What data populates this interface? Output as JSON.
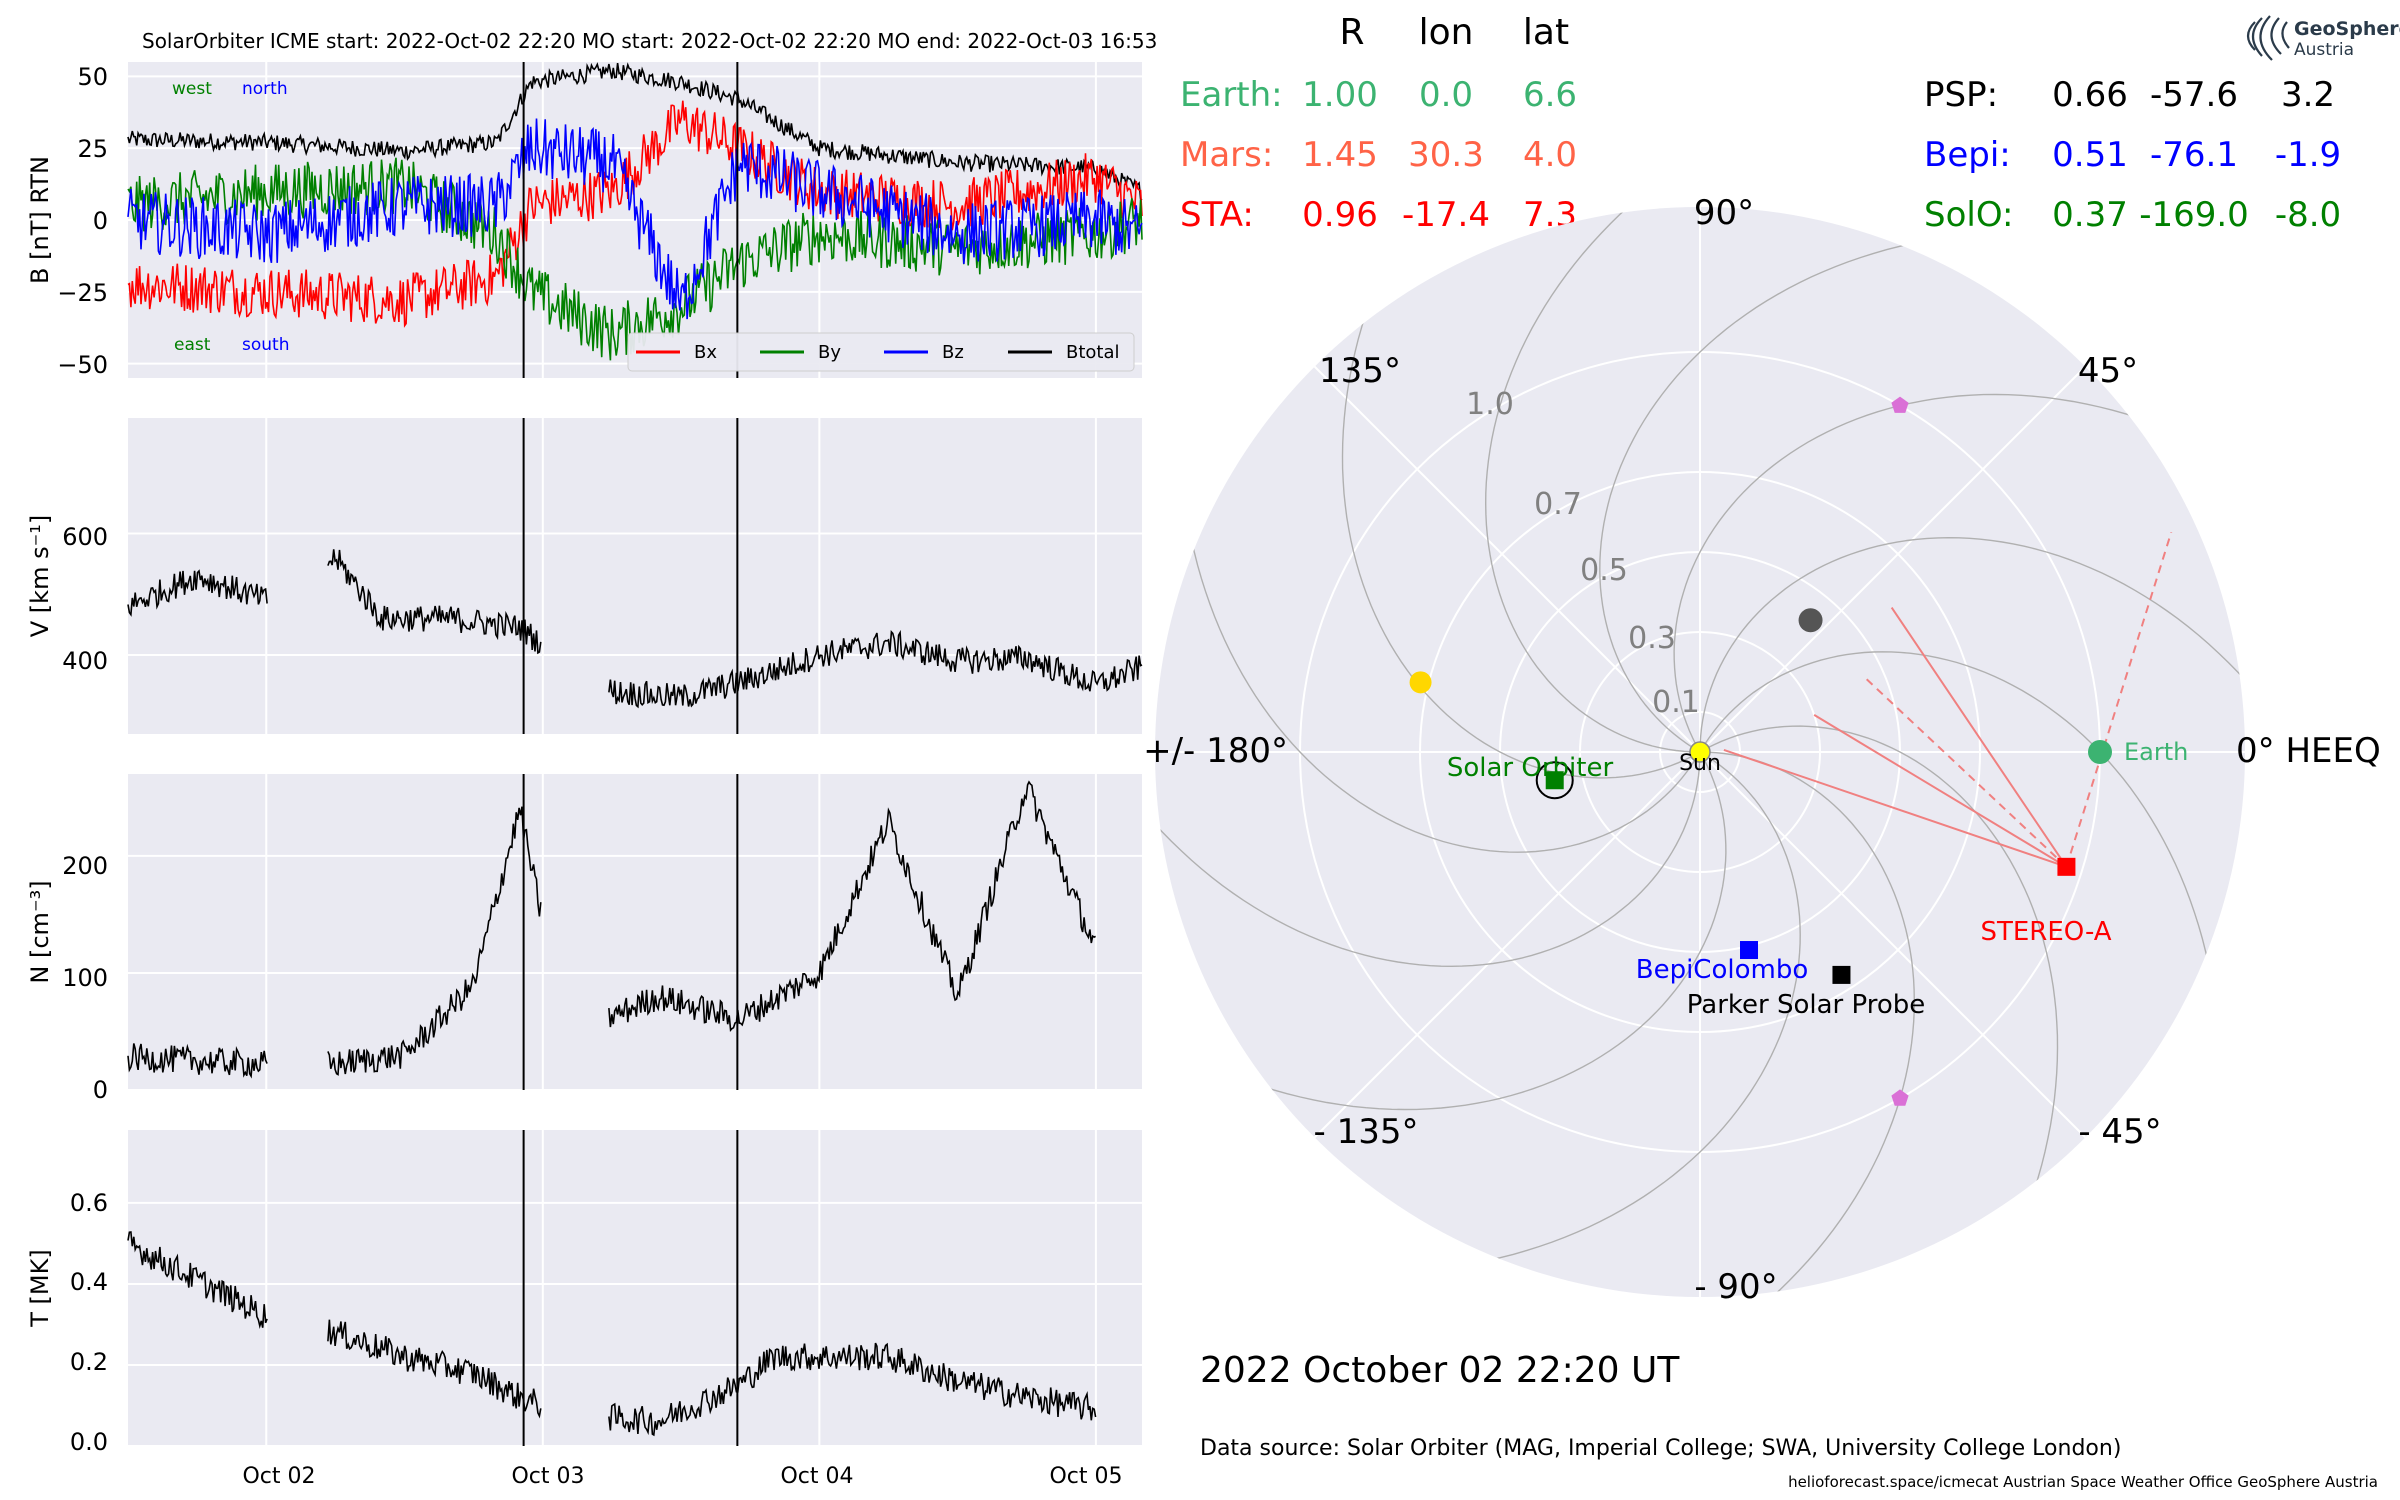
{
  "colors": {
    "bx": "#ff0000",
    "by": "#008000",
    "bz": "#0000ff",
    "btotal": "#000000",
    "earth": "#3cb371",
    "mars": "#ff6347",
    "sta": "#ff0000",
    "psp": "#000000",
    "bepi": "#0000ff",
    "solo": "#008000",
    "sun": "#ffff00",
    "plot_bg": "#eaeaf2",
    "grid": "#ffffff",
    "mercury": "#555555",
    "venus": "#ffd700",
    "l4l5": "#da70d6"
  },
  "header": {
    "title": "SolarOrbiter    ICME start: 2022-Oct-02 22:20    MO start: 2022-Oct-02 22:20    MO end: 2022-Oct-03 16:53"
  },
  "panel_b": {
    "ylabel": "B [nT] RTN",
    "yticks": [
      "50",
      "25",
      "0",
      "−25",
      "−50"
    ],
    "west": "west",
    "north": "north",
    "east": "east",
    "south": "south",
    "legend": [
      "Bx",
      "By",
      "Bz",
      "Btotal"
    ]
  },
  "panel_v": {
    "ylabel": "V [km s⁻¹]",
    "yticks": [
      "600",
      "400"
    ]
  },
  "panel_n": {
    "ylabel": "N [cm⁻³]",
    "yticks": [
      "200",
      "100",
      "0"
    ]
  },
  "panel_t": {
    "ylabel": "T [MK]",
    "yticks": [
      "0.6",
      "0.4",
      "0.2",
      "0.0"
    ]
  },
  "xticks": [
    "Oct 02",
    "Oct 03",
    "Oct 04",
    "Oct 05"
  ],
  "chart_data": [
    {
      "type": "line",
      "title": "SolarOrbiter    ICME start: 2022-Oct-02 22:20    MO start: 2022-Oct-02 22:20    MO end: 2022-Oct-03 16:53",
      "ylabel": "B [nT] RTN",
      "xlim": [
        "2022-10-01 12:00",
        "2022-10-05 04:00"
      ],
      "ylim": [
        -55,
        55
      ],
      "vlines": [
        "2022-10-02 22:20",
        "2022-10-03 16:53"
      ],
      "legend": "lower-right",
      "series": [
        {
          "name": "Btotal",
          "x": [
            "10-01 12:00",
            "10-02 00:00",
            "10-02 12:00",
            "10-02 20:00",
            "10-02 23:00",
            "10-03 06:00",
            "10-03 12:00",
            "10-03 17:00",
            "10-04 00:00",
            "10-04 12:00",
            "10-05 00:00",
            "10-05 04:00"
          ],
          "y": [
            28,
            27,
            24,
            27,
            48,
            52,
            48,
            42,
            25,
            20,
            18,
            10
          ]
        },
        {
          "name": "Bx",
          "x": [
            "10-01 12:00",
            "10-02 00:00",
            "10-02 12:00",
            "10-02 20:00",
            "10-02 23:00",
            "10-03 06:00",
            "10-03 12:00",
            "10-03 17:00",
            "10-04 00:00",
            "10-04 12:00",
            "10-05 00:00",
            "10-05 04:00"
          ],
          "y": [
            -22,
            -25,
            -28,
            -20,
            5,
            10,
            35,
            25,
            10,
            5,
            15,
            5
          ]
        },
        {
          "name": "By",
          "x": [
            "10-01 12:00",
            "10-02 00:00",
            "10-02 12:00",
            "10-02 20:00",
            "10-02 23:00",
            "10-03 06:00",
            "10-03 12:00",
            "10-03 17:00",
            "10-04 00:00",
            "10-04 12:00",
            "10-05 00:00",
            "10-05 04:00"
          ],
          "y": [
            5,
            10,
            12,
            -5,
            -25,
            -40,
            -30,
            -15,
            -5,
            -10,
            -5,
            0
          ]
        },
        {
          "name": "Bz",
          "x": [
            "10-01 12:00",
            "10-02 00:00",
            "10-02 12:00",
            "10-02 20:00",
            "10-02 23:00",
            "10-03 06:00",
            "10-03 12:00",
            "10-03 17:00",
            "10-04 00:00",
            "10-04 12:00",
            "10-05 00:00",
            "10-05 04:00"
          ],
          "y": [
            0,
            -5,
            5,
            5,
            25,
            20,
            -30,
            20,
            10,
            -5,
            0,
            -5
          ]
        }
      ]
    },
    {
      "type": "line",
      "ylabel": "V [km s⁻¹]",
      "ylim": [
        270,
        790
      ],
      "series": [
        {
          "x": [
            "10-01 12:00",
            "10-01 18:00",
            "10-02 00:00",
            "10-02 06:00",
            "10-02 10:00",
            "10-02 16:00",
            "10-02 22:00",
            "10-03 02:00",
            "10-03 06:00",
            "10-03 12:00",
            "10-03 18:00",
            "10-04 00:00",
            "10-04 06:00",
            "10-04 12:00",
            "10-04 18:00",
            "10-05 00:00",
            "10-05 04:00"
          ],
          "y": [
            480,
            530,
            490,
            560,
            460,
            460,
            445,
            390,
            340,
            330,
            360,
            400,
            420,
            390,
            395,
            350,
            380
          ]
        }
      ]
    },
    {
      "type": "line",
      "ylabel": "N [cm⁻³]",
      "ylim": [
        0,
        270
      ],
      "series": [
        {
          "x": [
            "10-01 12:00",
            "10-02 00:00",
            "10-02 06:00",
            "10-02 12:00",
            "10-02 18:00",
            "10-02 22:00",
            "10-03 02:00",
            "10-03 10:00",
            "10-03 17:00",
            "10-04 00:00",
            "10-04 06:00",
            "10-04 12:00",
            "10-04 18:00",
            "10-05 00:00"
          ],
          "y": [
            28,
            22,
            22,
            30,
            90,
            240,
            45,
            80,
            60,
            100,
            230,
            80,
            260,
            120
          ]
        }
      ]
    },
    {
      "type": "line",
      "ylabel": "T [MK]",
      "ylim": [
        0,
        0.78
      ],
      "series": [
        {
          "x": [
            "10-01 12:00",
            "10-02 00:00",
            "10-02 06:00",
            "10-02 12:00",
            "10-02 18:00",
            "10-02 22:00",
            "10-03 02:00",
            "10-03 10:00",
            "10-03 17:00",
            "10-03 20:00",
            "10-04 06:00",
            "10-04 12:00",
            "10-04 18:00",
            "10-05 00:00"
          ],
          "y": [
            0.5,
            0.32,
            0.28,
            0.22,
            0.18,
            0.12,
            0.08,
            0.06,
            0.15,
            0.22,
            0.22,
            0.16,
            0.12,
            0.09
          ]
        }
      ]
    },
    {
      "type": "scatter",
      "title": "2022 October 02  22:20 UT",
      "axis_label": "0° HEEQ",
      "angle_labels": [
        "90°",
        "45°",
        "0° HEEQ",
        "- 45°",
        "- 90°",
        "- 135°",
        "+/- 180°",
        "135°"
      ],
      "radial_labels": [
        "0.1",
        "0.3",
        "0.5",
        "0.7",
        "1.0"
      ],
      "points": [
        {
          "name": "Sun",
          "r": 0.0,
          "lon": 0.0
        },
        {
          "name": "Earth",
          "r": 1.0,
          "lon": 0.0
        },
        {
          "name": "STEREO-A",
          "r": 0.96,
          "lon": -17.4
        },
        {
          "name": "Parker Solar Probe",
          "r": 0.66,
          "lon": -57.6
        },
        {
          "name": "BepiColombo",
          "r": 0.51,
          "lon": -76.1
        },
        {
          "name": "Solar Orbiter",
          "r": 0.37,
          "lon": -169.0
        }
      ]
    }
  ],
  "positions_table": {
    "headers": [
      "R",
      "lon",
      "lat"
    ],
    "left": [
      {
        "name": "Earth:",
        "R": "1.00",
        "lon": "0.0",
        "lat": "6.6",
        "color": "#3cb371"
      },
      {
        "name": "Mars:",
        "R": "1.45",
        "lon": "30.3",
        "lat": "4.0",
        "color": "#ff6347"
      },
      {
        "name": "STA:",
        "R": "0.96",
        "lon": "-17.4",
        "lat": "7.3",
        "color": "#ff0000"
      }
    ],
    "right": [
      {
        "name": "PSP:",
        "R": "0.66",
        "lon": "-57.6",
        "lat": "3.2",
        "color": "#000000"
      },
      {
        "name": "Bepi:",
        "R": "0.51",
        "lon": "-76.1",
        "lat": "-1.9",
        "color": "#0000ff"
      },
      {
        "name": "SolO:",
        "R": "0.37",
        "lon": "-169.0",
        "lat": "-8.0",
        "color": "#008000"
      }
    ]
  },
  "polar": {
    "date_label": "2022 October 02  22:20 UT",
    "sun_label": "Sun",
    "earth_label": "Earth",
    "stereo_label": "STEREO-A",
    "psp_label": "Parker Solar Probe",
    "bepi_label": "BepiColombo",
    "solo_label": "Solar Orbiter"
  },
  "logo": {
    "name": "GeoSphere",
    "sub": "Austria"
  },
  "footer": {
    "source": "Data source: Solar Orbiter (MAG, Imperial College; SWA, University College London)",
    "credits": "helioforecast.space/icmecat   Austrian Space Weather Office   GeoSphere Austria"
  }
}
